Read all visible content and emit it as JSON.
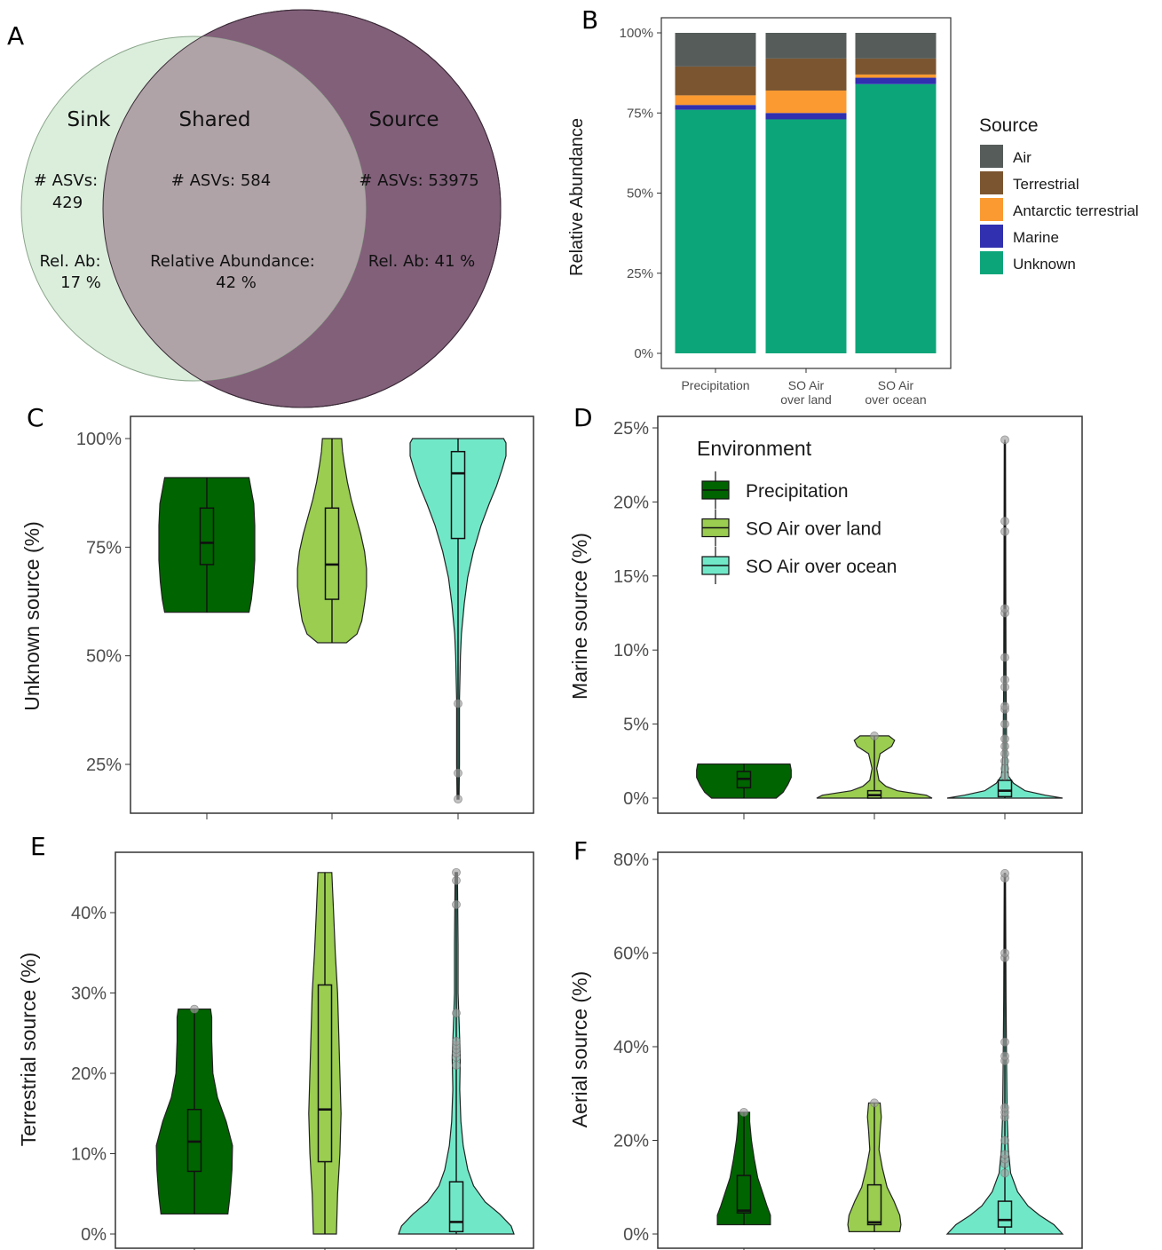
{
  "panel_letters": [
    "A",
    "B",
    "C",
    "D",
    "E",
    "F"
  ],
  "venn": {
    "sink": {
      "title": "Sink",
      "asv_label": "# ASVs:",
      "asv_value": "429",
      "rel_label": "Rel. Ab:",
      "rel_value": "17 %"
    },
    "shared": {
      "title": "Shared",
      "asv_text": "# ASVs: 584",
      "rel_label": "Relative Abundance:",
      "rel_value": "42 %"
    },
    "source": {
      "title": "Source",
      "asv_text": "# ASVs: 53975",
      "rel_text": "Rel. Ab: 41 %"
    }
  },
  "colors": {
    "venn_sink": "#dbeedc",
    "venn_source": "#82607a",
    "venn_shared": "#b0a3a7",
    "air": "#555c5a",
    "terrestrial": "#7b5530",
    "antarctic": "#fb9a30",
    "marine": "#3030b0",
    "unknown": "#0ca57a",
    "precip": "#006400",
    "so_land": "#9acd50",
    "so_ocean": "#70e8c8"
  },
  "chart_data": [
    {
      "panel": "B",
      "type": "bar",
      "stacked": true,
      "ylabel": "Relative Abundance",
      "yticks": [
        "0%",
        "25%",
        "50%",
        "75%",
        "100%"
      ],
      "ylim": [
        0,
        100
      ],
      "categories": [
        "Precipitation",
        "SO Air over land",
        "SO Air over ocean"
      ],
      "category_lines": [
        [
          "Precipitation"
        ],
        [
          "SO Air",
          "over land"
        ],
        [
          "SO Air",
          "over ocean"
        ]
      ],
      "legend_title": "Source",
      "legend_position": "right",
      "series": [
        {
          "name": "Unknown",
          "values": [
            76,
            73,
            84
          ]
        },
        {
          "name": "Marine",
          "values": [
            1.5,
            2,
            2
          ]
        },
        {
          "name": "Antarctic terrestrial",
          "values": [
            3,
            7,
            1
          ]
        },
        {
          "name": "Terrestrial",
          "values": [
            9,
            10,
            5
          ]
        },
        {
          "name": "Air",
          "values": [
            10.5,
            8,
            8
          ]
        }
      ],
      "legend_order": [
        "Air",
        "Terrestrial",
        "Antarctic terrestrial",
        "Marine",
        "Unknown"
      ]
    },
    {
      "panel": "C",
      "type": "violin",
      "ylabel": "Unknown source (%)",
      "yticks": [
        25,
        50,
        75,
        100
      ],
      "ytick_labels": [
        "25%",
        "50%",
        "75%",
        "100%"
      ],
      "ylim": [
        16,
        101
      ],
      "groups": [
        {
          "name": "Precipitation",
          "min": 60,
          "q1": 71,
          "median": 76,
          "q3": 84,
          "max": 91,
          "density": [
            [
              60,
              0.88
            ],
            [
              63,
              0.93
            ],
            [
              67,
              0.97
            ],
            [
              72,
              1.0
            ],
            [
              76,
              1.0
            ],
            [
              80,
              1.0
            ],
            [
              85,
              0.98
            ],
            [
              88,
              0.93
            ],
            [
              91,
              0.88
            ]
          ],
          "outliers": []
        },
        {
          "name": "SO Air over land",
          "min": 53,
          "q1": 63,
          "median": 71,
          "q3": 84,
          "max": 100,
          "density": [
            [
              53,
              0.3
            ],
            [
              55,
              0.52
            ],
            [
              58,
              0.62
            ],
            [
              62,
              0.68
            ],
            [
              66,
              0.72
            ],
            [
              70,
              0.72
            ],
            [
              74,
              0.68
            ],
            [
              78,
              0.6
            ],
            [
              82,
              0.5
            ],
            [
              86,
              0.4
            ],
            [
              90,
              0.32
            ],
            [
              94,
              0.26
            ],
            [
              97,
              0.22
            ],
            [
              100,
              0.2
            ]
          ],
          "outliers": []
        },
        {
          "name": "SO Air over ocean",
          "min": 17,
          "q1": 77,
          "median": 92,
          "q3": 97,
          "max": 100,
          "density": [
            [
              17,
              0.02
            ],
            [
              25,
              0.03
            ],
            [
              40,
              0.03
            ],
            [
              50,
              0.05
            ],
            [
              55,
              0.07
            ],
            [
              62,
              0.13
            ],
            [
              68,
              0.2
            ],
            [
              74,
              0.32
            ],
            [
              80,
              0.48
            ],
            [
              85,
              0.65
            ],
            [
              89,
              0.8
            ],
            [
              93,
              0.92
            ],
            [
              96,
              1.0
            ],
            [
              99,
              1.0
            ],
            [
              100,
              0.95
            ]
          ],
          "outliers": [
            17,
            23,
            39
          ]
        }
      ]
    },
    {
      "panel": "D",
      "type": "violin",
      "ylabel": "Marine source (%)",
      "yticks": [
        0,
        5,
        10,
        15,
        20,
        25
      ],
      "ytick_labels": [
        "0%",
        "5%",
        "10%",
        "15%",
        "20%",
        "25%"
      ],
      "ylim": [
        -1,
        25
      ],
      "legend_title": "Environment",
      "legend_entries": [
        "Precipitation",
        "SO Air over land",
        "SO Air over ocean"
      ],
      "groups": [
        {
          "name": "Precipitation",
          "min": 0,
          "q1": 0.7,
          "median": 1.3,
          "q3": 1.8,
          "max": 2.3,
          "density": [
            [
              0,
              0.56
            ],
            [
              0.4,
              0.68
            ],
            [
              0.9,
              0.76
            ],
            [
              1.4,
              0.82
            ],
            [
              1.9,
              0.82
            ],
            [
              2.3,
              0.8
            ]
          ],
          "outliers": []
        },
        {
          "name": "SO Air over land",
          "min": 0,
          "q1": 0,
          "median": 0.2,
          "q3": 0.5,
          "max": 4.2,
          "density": [
            [
              0,
              1.0
            ],
            [
              0.2,
              0.9
            ],
            [
              0.5,
              0.4
            ],
            [
              0.8,
              0.2
            ],
            [
              1.2,
              0.08
            ],
            [
              2,
              0.04
            ],
            [
              3,
              0.1
            ],
            [
              3.5,
              0.3
            ],
            [
              3.9,
              0.35
            ],
            [
              4.2,
              0.25
            ]
          ],
          "outliers": [
            4.2
          ]
        },
        {
          "name": "SO Air over ocean",
          "min": 0,
          "q1": 0.1,
          "median": 0.5,
          "q3": 1.2,
          "max": 24.2,
          "density": [
            [
              0,
              1.0
            ],
            [
              0.2,
              0.7
            ],
            [
              0.5,
              0.35
            ],
            [
              1,
              0.15
            ],
            [
              1.5,
              0.06
            ],
            [
              3,
              0.03
            ],
            [
              8,
              0.02
            ],
            [
              15,
              0.015
            ],
            [
              24,
              0.01
            ]
          ],
          "outliers": [
            1.5,
            2,
            2.5,
            3,
            3.5,
            4,
            5,
            6,
            6.2,
            7.5,
            8,
            9.5,
            12.5,
            12.8,
            18,
            18.7,
            24.2
          ]
        }
      ]
    },
    {
      "panel": "E",
      "type": "violin",
      "ylabel": "Terrestrial source (%)",
      "yticks": [
        0,
        10,
        20,
        30,
        40
      ],
      "ytick_labels": [
        "0%",
        "10%",
        "20%",
        "30%",
        "40%"
      ],
      "ylim": [
        -1.5,
        47
      ],
      "groups": [
        {
          "name": "Precipitation",
          "min": 2.5,
          "q1": 7.8,
          "median": 11.5,
          "q3": 15.5,
          "max": 28,
          "density": [
            [
              2.5,
              0.58
            ],
            [
              5,
              0.62
            ],
            [
              8,
              0.65
            ],
            [
              11,
              0.66
            ],
            [
              14,
              0.55
            ],
            [
              17,
              0.4
            ],
            [
              20,
              0.32
            ],
            [
              24,
              0.3
            ],
            [
              27,
              0.3
            ],
            [
              28,
              0.28
            ]
          ],
          "outliers": [
            28
          ]
        },
        {
          "name": "SO Air over land",
          "min": 0,
          "q1": 9,
          "median": 15.5,
          "q3": 31,
          "max": 45,
          "density": [
            [
              0,
              0.2
            ],
            [
              5,
              0.22
            ],
            [
              10,
              0.26
            ],
            [
              15,
              0.28
            ],
            [
              20,
              0.26
            ],
            [
              25,
              0.24
            ],
            [
              30,
              0.22
            ],
            [
              35,
              0.18
            ],
            [
              40,
              0.15
            ],
            [
              45,
              0.12
            ]
          ],
          "outliers": []
        },
        {
          "name": "SO Air over ocean",
          "min": 0,
          "q1": 0.3,
          "median": 1.5,
          "q3": 6.5,
          "max": 45,
          "density": [
            [
              0,
              1.0
            ],
            [
              1,
              0.95
            ],
            [
              2.5,
              0.75
            ],
            [
              4,
              0.5
            ],
            [
              6,
              0.3
            ],
            [
              8,
              0.2
            ],
            [
              11,
              0.12
            ],
            [
              14,
              0.08
            ],
            [
              18,
              0.06
            ],
            [
              22,
              0.07
            ],
            [
              26,
              0.05
            ],
            [
              30,
              0.03
            ],
            [
              36,
              0.03
            ],
            [
              45,
              0.02
            ]
          ],
          "outliers": [
            21,
            22,
            22.5,
            23,
            23.5,
            24,
            27.5,
            41,
            44,
            45
          ]
        }
      ]
    },
    {
      "panel": "F",
      "type": "violin",
      "ylabel": "Aerial source (%)",
      "yticks": [
        0,
        20,
        40,
        60,
        80
      ],
      "ytick_labels": [
        "0%",
        "20%",
        "40%",
        "60%",
        "80%"
      ],
      "ylim": [
        -1.5,
        81
      ],
      "groups": [
        {
          "name": "Precipitation",
          "min": 2,
          "q1": 4.5,
          "median": 5,
          "q3": 12.5,
          "max": 26,
          "density": [
            [
              2,
              0.46
            ],
            [
              4,
              0.46
            ],
            [
              6,
              0.4
            ],
            [
              9,
              0.32
            ],
            [
              12,
              0.24
            ],
            [
              16,
              0.18
            ],
            [
              20,
              0.13
            ],
            [
              24,
              0.1
            ],
            [
              26,
              0.1
            ]
          ],
          "outliers": [
            26
          ]
        },
        {
          "name": "SO Air over land",
          "min": 0.5,
          "q1": 2,
          "median": 2.5,
          "q3": 10.5,
          "max": 28,
          "density": [
            [
              0.5,
              0.44
            ],
            [
              2,
              0.46
            ],
            [
              4,
              0.44
            ],
            [
              7,
              0.34
            ],
            [
              10,
              0.22
            ],
            [
              14,
              0.14
            ],
            [
              18,
              0.08
            ],
            [
              22,
              0.1
            ],
            [
              25,
              0.12
            ],
            [
              28,
              0.1
            ]
          ],
          "outliers": [
            28
          ]
        },
        {
          "name": "SO Air over ocean",
          "min": 0,
          "q1": 1.5,
          "median": 3,
          "q3": 7,
          "max": 77,
          "density": [
            [
              0,
              1.0
            ],
            [
              2,
              0.85
            ],
            [
              4,
              0.6
            ],
            [
              6,
              0.4
            ],
            [
              9,
              0.22
            ],
            [
              13,
              0.1
            ],
            [
              18,
              0.06
            ],
            [
              25,
              0.04
            ],
            [
              35,
              0.03
            ],
            [
              50,
              0.02
            ],
            [
              77,
              0.01
            ]
          ],
          "outliers": [
            13,
            15,
            16,
            17,
            20,
            25,
            26,
            27,
            37,
            38,
            41,
            59,
            60,
            76,
            77
          ]
        }
      ]
    }
  ]
}
